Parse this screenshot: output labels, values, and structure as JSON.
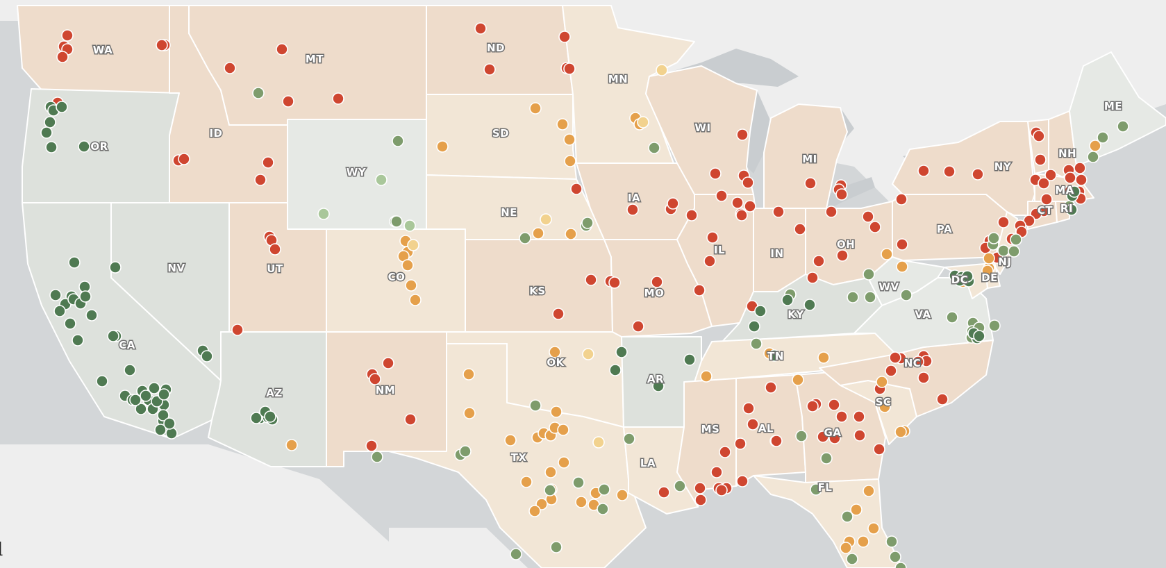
{
  "colors": {
    "water": "#d3d6d8",
    "land": "#eeeeee",
    "state_fill_high": "#eedccb",
    "state_fill_mid": "#f2e6d6",
    "state_fill_low": "#dde1dc",
    "state_fill_lowest": "#e6e9e5",
    "dot_high": "#cf4630",
    "dot_mid": "#e5a04b",
    "dot_mid_light": "#f2d28e",
    "dot_low": "#7e9c6c",
    "dot_low_light": "#a9c79a",
    "dot_lowest": "#4f7a52"
  },
  "state_labels": [
    "WA",
    "OR",
    "CA",
    "ID",
    "NV",
    "MT",
    "WY",
    "UT",
    "AZ",
    "CO",
    "NM",
    "ND",
    "SD",
    "NE",
    "KS",
    "OK",
    "TX",
    "MN",
    "IA",
    "MO",
    "AR",
    "LA",
    "WI",
    "IL",
    "MI",
    "IN",
    "OH",
    "KY",
    "TN",
    "MS",
    "AL",
    "GA",
    "FL",
    "SC",
    "NC",
    "VA",
    "WV",
    "PA",
    "NY",
    "ME",
    "NH",
    "MA",
    "CT",
    "RI",
    "NJ",
    "DE",
    "DC"
  ],
  "map_text": {
    "left_edge_char": "l"
  },
  "markers": {
    "high_count": 150,
    "mid_count": 60,
    "low_count": 40,
    "lowest_count": 70
  }
}
